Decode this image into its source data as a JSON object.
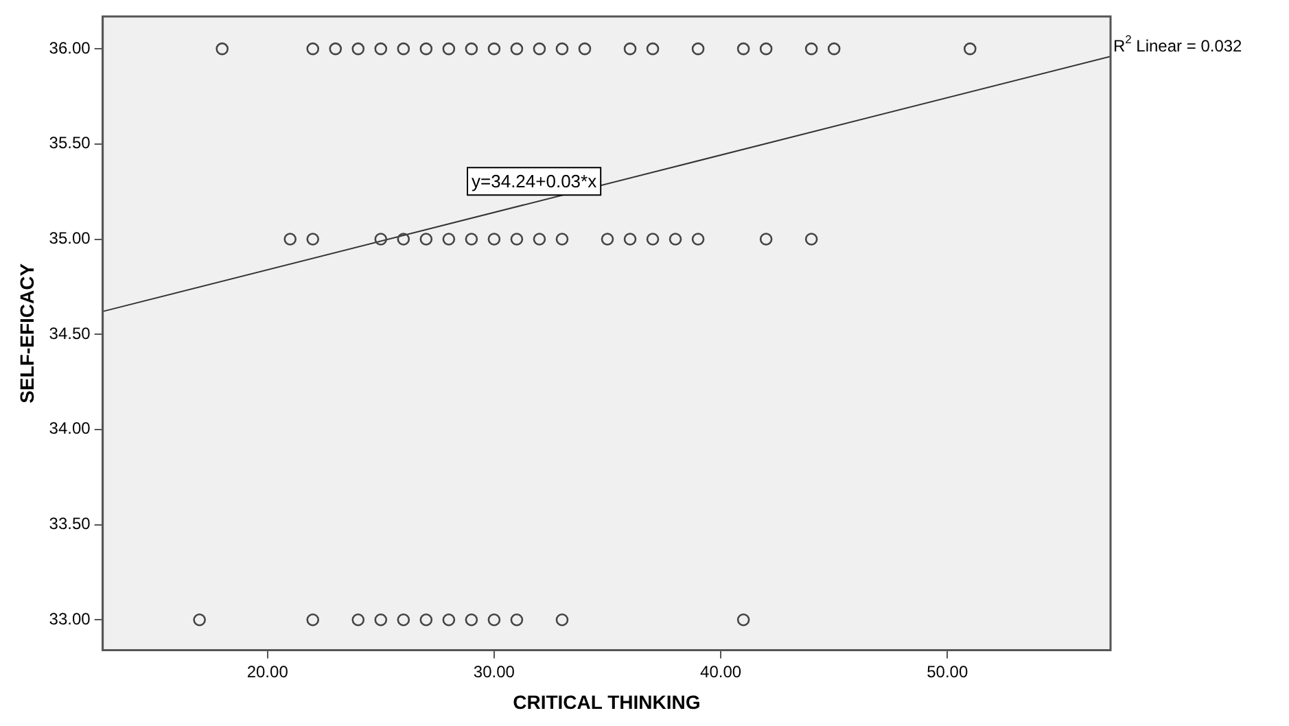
{
  "chart_data": {
    "type": "scatter",
    "xlabel": "CRITICAL THINKING",
    "ylabel": "SELF-EFICACY",
    "marker": "circle",
    "grid": false,
    "legend": false,
    "xlim": [
      12.73,
      57.2
    ],
    "ylim": [
      32.84,
      36.17
    ],
    "xticks": [
      {
        "value": 20,
        "label": "20.00"
      },
      {
        "value": 30,
        "label": "30.00"
      },
      {
        "value": 40,
        "label": "40.00"
      },
      {
        "value": 50,
        "label": "50.00"
      }
    ],
    "yticks": [
      {
        "value": 33,
        "label": "33.00"
      },
      {
        "value": 33.5,
        "label": "33.50"
      },
      {
        "value": 34,
        "label": "34.00"
      },
      {
        "value": 34.5,
        "label": "34.50"
      },
      {
        "value": 35,
        "label": "35.00"
      },
      {
        "value": 35.5,
        "label": "35.50"
      },
      {
        "value": 36,
        "label": "36.00"
      }
    ],
    "series": [
      {
        "color": "#444444",
        "x": [
          18,
          22,
          23,
          24,
          25,
          26,
          27,
          28,
          29,
          30,
          31,
          32,
          33,
          34,
          36,
          37,
          39,
          41,
          42,
          44,
          45,
          51,
          21,
          22,
          25,
          26,
          27,
          28,
          29,
          30,
          31,
          32,
          33,
          35,
          36,
          37,
          38,
          39,
          42,
          44,
          17,
          22,
          24,
          25,
          26,
          27,
          28,
          29,
          30,
          31,
          33,
          41
        ],
        "values": [
          36,
          36,
          36,
          36,
          36,
          36,
          36,
          36,
          36,
          36,
          36,
          36,
          36,
          36,
          36,
          36,
          36,
          36,
          36,
          36,
          36,
          36,
          35,
          35,
          35,
          35,
          35,
          35,
          35,
          35,
          35,
          35,
          35,
          35,
          35,
          35,
          35,
          35,
          35,
          35,
          33,
          33,
          33,
          33,
          33,
          33,
          33,
          33,
          33,
          33,
          33,
          33
        ]
      },
      {
        "type": "line",
        "marker": "none",
        "color": "#333333",
        "x": [
          12.73,
          57.2
        ],
        "values": [
          34.62,
          35.96
        ]
      }
    ],
    "annotations": [
      "y=34.24+0.03*x",
      "R$^{2}$ Linear = 0.032"
    ]
  }
}
